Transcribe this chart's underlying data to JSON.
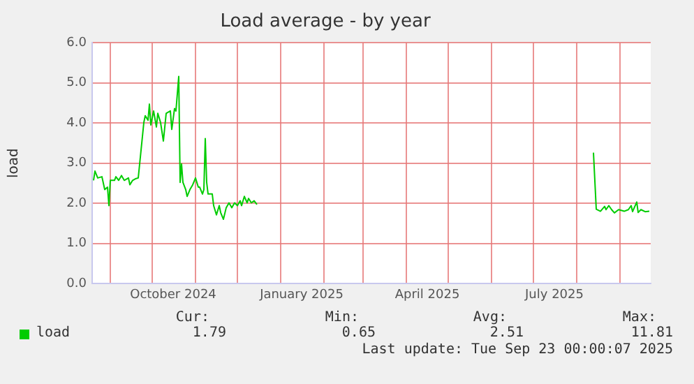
{
  "chart_data": {
    "type": "line",
    "title": "Load average - by year",
    "ylabel": "load",
    "x": [
      "2024-08-20",
      "2024-08-21",
      "2024-08-23",
      "2024-08-26",
      "2024-08-28",
      "2024-08-30",
      "2024-08-31",
      "2024-09-01",
      "2024-09-04",
      "2024-09-05",
      "2024-09-07",
      "2024-09-09",
      "2024-09-11",
      "2024-09-14",
      "2024-09-15",
      "2024-09-17",
      "2024-09-19",
      "2024-09-21",
      "2024-09-25",
      "2024-09-26",
      "2024-09-28",
      "2024-09-29",
      "2024-09-30",
      "2024-10-02",
      "2024-10-04",
      "2024-10-05",
      "2024-10-07",
      "2024-10-09",
      "2024-10-11",
      "2024-10-14",
      "2024-10-15",
      "2024-10-17",
      "2024-10-18",
      "2024-10-20",
      "2024-10-21",
      "2024-10-22",
      "2024-10-23",
      "2024-10-25",
      "2024-10-26",
      "2024-10-28",
      "2024-10-30",
      "2024-11-01",
      "2024-11-03",
      "2024-11-04",
      "2024-11-06",
      "2024-11-07",
      "2024-11-08",
      "2024-11-09",
      "2024-11-10",
      "2024-11-13",
      "2024-11-14",
      "2024-11-16",
      "2024-11-18",
      "2024-11-19",
      "2024-11-21",
      "2024-11-23",
      "2024-11-25",
      "2024-11-27",
      "2024-11-29",
      "2024-12-01",
      "2024-12-03",
      "2024-12-04",
      "2024-12-06",
      "2024-12-08",
      "2024-12-09",
      "2024-12-11",
      "2024-12-13",
      "2024-12-15",
      "2025-03-01",
      "2025-08-13",
      "2025-08-15",
      "2025-08-18",
      "2025-08-21",
      "2025-08-22",
      "2025-08-24",
      "2025-08-26",
      "2025-08-28",
      "2025-08-31",
      "2025-09-04",
      "2025-09-07",
      "2025-09-09",
      "2025-09-10",
      "2025-09-13",
      "2025-09-14",
      "2025-09-16",
      "2025-09-19",
      "2025-09-22"
    ],
    "series": [
      {
        "name": "load",
        "color": "#00cc00",
        "values": [
          2.57,
          2.8,
          2.63,
          2.66,
          2.34,
          2.4,
          1.94,
          2.57,
          2.57,
          2.66,
          2.57,
          2.69,
          2.57,
          2.63,
          2.46,
          2.57,
          2.61,
          2.63,
          4.01,
          4.18,
          4.07,
          4.47,
          3.95,
          4.3,
          3.9,
          4.24,
          4.01,
          3.55,
          4.24,
          4.3,
          3.84,
          4.36,
          4.3,
          5.16,
          2.52,
          2.98,
          2.52,
          2.34,
          2.17,
          2.34,
          2.46,
          2.63,
          2.4,
          2.4,
          2.23,
          2.34,
          3.61,
          2.52,
          2.23,
          2.23,
          1.94,
          1.71,
          1.94,
          1.77,
          1.6,
          1.89,
          2.01,
          1.89,
          2.01,
          1.94,
          2.06,
          1.94,
          2.17,
          2.01,
          2.12,
          2.01,
          2.06,
          1.97,
          null,
          3.26,
          1.85,
          1.8,
          1.92,
          1.84,
          1.94,
          1.84,
          1.76,
          1.84,
          1.8,
          1.84,
          1.94,
          1.79,
          2.03,
          1.77,
          1.84,
          1.79,
          1.8
        ]
      }
    ],
    "xlim": [
      "2024-08-19",
      "2025-09-23"
    ],
    "xticks": [
      {
        "value": "2024-09-01",
        "label": null
      },
      {
        "value": "2024-10-01",
        "label": null
      },
      {
        "value": "2024-10-16",
        "label": "October 2024"
      },
      {
        "value": "2024-11-01",
        "label": null
      },
      {
        "value": "2024-12-01",
        "label": null
      },
      {
        "value": "2025-01-01",
        "label": null
      },
      {
        "value": "2025-01-16",
        "label": "January 2025"
      },
      {
        "value": "2025-02-01",
        "label": null
      },
      {
        "value": "2025-03-01",
        "label": null
      },
      {
        "value": "2025-04-01",
        "label": null
      },
      {
        "value": "2025-04-16",
        "label": "April 2025"
      },
      {
        "value": "2025-05-01",
        "label": null
      },
      {
        "value": "2025-06-01",
        "label": null
      },
      {
        "value": "2025-07-01",
        "label": null
      },
      {
        "value": "2025-07-16",
        "label": "July 2025"
      },
      {
        "value": "2025-08-01",
        "label": null
      },
      {
        "value": "2025-09-01",
        "label": null
      }
    ],
    "ylim": [
      0,
      6
    ],
    "yticks": [
      {
        "value": 0,
        "label": "0.0"
      },
      {
        "value": 1,
        "label": "1.0"
      },
      {
        "value": 2,
        "label": "2.0"
      },
      {
        "value": 3,
        "label": "3.0"
      },
      {
        "value": 4,
        "label": "4.0"
      },
      {
        "value": 5,
        "label": "5.0"
      },
      {
        "value": 6,
        "label": "6.0"
      }
    ],
    "grid": true,
    "legend": "bottom left",
    "marker": "none",
    "line_style": "solid",
    "annotations": [
      "Cur:",
      "1.79",
      "Min:",
      "0.65",
      "Avg:",
      "2.51",
      "Max:",
      "11.81",
      "Last update: Tue Sep 23 00:00:07 2025"
    ]
  }
}
